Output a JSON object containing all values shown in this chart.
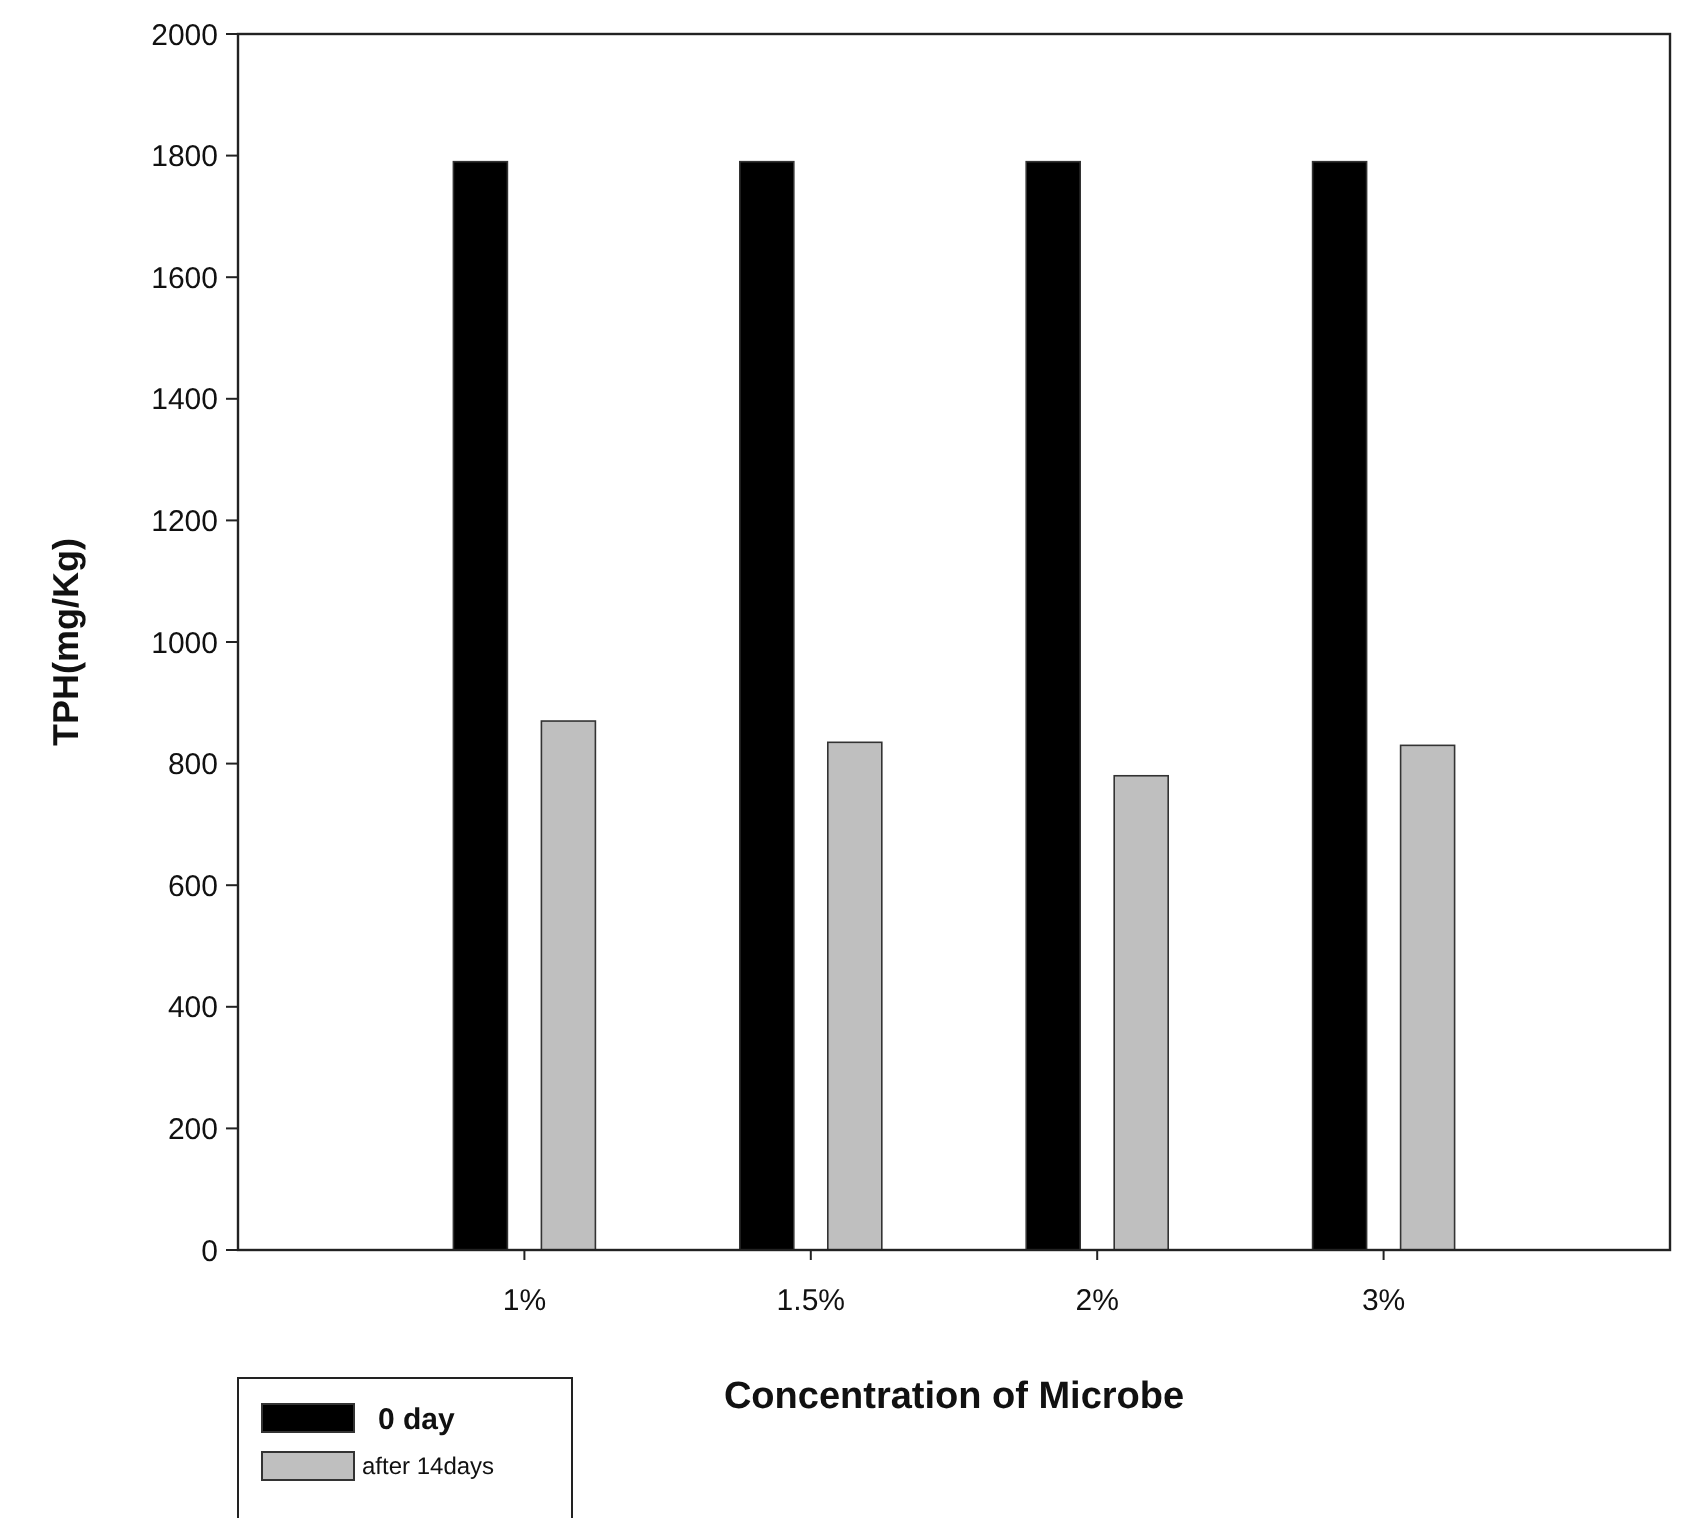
{
  "chart_data": {
    "type": "bar",
    "xlabel": "Concentration of Microbe",
    "ylabel": "TPH(mg/Kg)",
    "categories": [
      "1%",
      "1.5%",
      "2%",
      "3%"
    ],
    "series": [
      {
        "name": "0 day",
        "color": "#000000",
        "values": [
          1790,
          1790,
          1790,
          1790
        ]
      },
      {
        "name": "after 14days",
        "color": "#bfbfbf",
        "values": [
          870,
          835,
          780,
          830
        ]
      }
    ],
    "ylim": [
      0,
      2000
    ],
    "yticks": [
      0,
      200,
      400,
      600,
      800,
      1000,
      1200,
      1400,
      1600,
      1800,
      2000
    ],
    "grid": false,
    "legend": "bottom left"
  }
}
